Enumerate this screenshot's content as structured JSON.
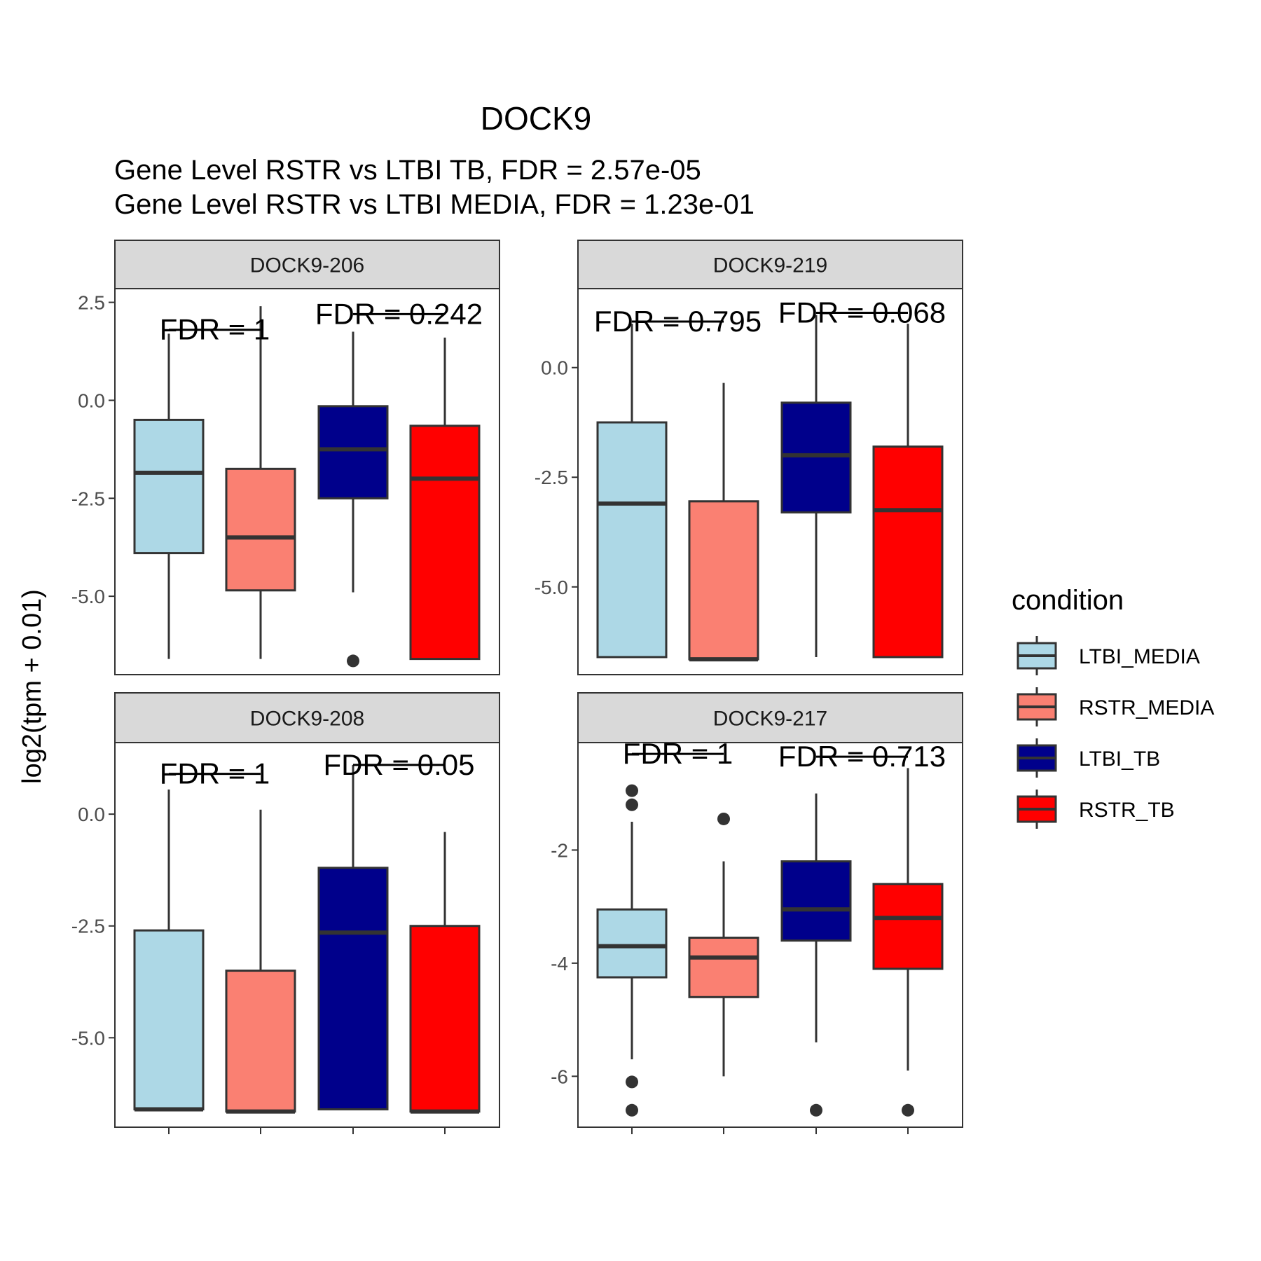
{
  "chart_data": {
    "type": "box",
    "title": "DOCK9",
    "subtitle_lines": [
      "Gene Level RSTR vs LTBI TB, FDR =  2.57e-05",
      "Gene Level RSTR vs LTBI MEDIA, FDR =  1.23e-01"
    ],
    "ylabel": "log2(tpm + 0.01)",
    "grid": false,
    "legend_position": "right",
    "legend": {
      "title": "condition",
      "items": [
        {
          "label": "LTBI_MEDIA",
          "color": "#ADD8E6"
        },
        {
          "label": "RSTR_MEDIA",
          "color": "#FA8072"
        },
        {
          "label": "LTBI_TB",
          "color": "#00008B"
        },
        {
          "label": "RSTR_TB",
          "color": "#FF0000"
        }
      ]
    },
    "categories": [
      "LTBI_MEDIA",
      "RSTR_MEDIA",
      "LTBI_TB",
      "RSTR_TB"
    ],
    "panels": [
      {
        "strip": "DOCK9-206",
        "ylim": [
          -7.0,
          2.85
        ],
        "yticks": [
          2.5,
          0.0,
          -2.5,
          -5.0
        ],
        "ytick_labels": [
          "2.5",
          "0.0",
          "-2.5",
          "-5.0"
        ],
        "boxes": [
          {
            "min": -6.6,
            "q1": -3.9,
            "median": -1.85,
            "q3": -0.5,
            "max": 1.7,
            "outliers": []
          },
          {
            "min": -6.6,
            "q1": -4.85,
            "median": -3.5,
            "q3": -1.75,
            "max": 2.4,
            "outliers": []
          },
          {
            "min": -4.9,
            "q1": -2.5,
            "median": -1.25,
            "q3": -0.15,
            "max": 1.75,
            "outliers": [
              -6.65
            ]
          },
          {
            "min": -6.6,
            "q1": -6.6,
            "median": -2.0,
            "q3": -0.65,
            "max": 1.6,
            "outliers": []
          }
        ],
        "fdr": [
          {
            "text": "FDR =  1",
            "y": 1.8
          },
          {
            "text": "FDR =  0.242",
            "y": 2.2
          }
        ]
      },
      {
        "strip": "DOCK9-219",
        "ylim": [
          -7.0,
          1.8
        ],
        "yticks": [
          0.0,
          -2.5,
          -5.0
        ],
        "ytick_labels": [
          "0.0",
          "-2.5",
          "-5.0"
        ],
        "boxes": [
          {
            "min": -6.6,
            "q1": -6.6,
            "median": -3.1,
            "q3": -1.25,
            "max": 1.0,
            "outliers": []
          },
          {
            "min": -6.65,
            "q1": -6.65,
            "median": -6.65,
            "q3": -3.05,
            "max": -0.35,
            "outliers": []
          },
          {
            "min": -6.6,
            "q1": -3.3,
            "median": -2.0,
            "q3": -0.8,
            "max": 1.2,
            "outliers": []
          },
          {
            "min": -6.6,
            "q1": -6.6,
            "median": -3.25,
            "q3": -1.8,
            "max": 1.0,
            "outliers": []
          }
        ],
        "fdr": [
          {
            "text": "FDR =  0.795",
            "y": 1.05
          },
          {
            "text": "FDR =  0.068",
            "y": 1.25
          }
        ]
      },
      {
        "strip": "DOCK9-208",
        "ylim": [
          -7.0,
          1.6
        ],
        "yticks": [
          0.0,
          -2.5,
          -5.0
        ],
        "ytick_labels": [
          "0.0",
          "-2.5",
          "-5.0"
        ],
        "boxes": [
          {
            "min": -6.6,
            "q1": -6.6,
            "median": -6.6,
            "q3": -2.6,
            "max": 0.55,
            "outliers": []
          },
          {
            "min": -6.65,
            "q1": -6.65,
            "median": -6.65,
            "q3": -3.5,
            "max": 0.1,
            "outliers": []
          },
          {
            "min": -6.6,
            "q1": -6.6,
            "median": -2.65,
            "q3": -1.2,
            "max": 1.1,
            "outliers": []
          },
          {
            "min": -6.65,
            "q1": -6.65,
            "median": -6.65,
            "q3": -2.5,
            "max": -0.4,
            "outliers": []
          }
        ],
        "fdr": [
          {
            "text": "FDR =  1",
            "y": 0.9
          },
          {
            "text": "FDR =  0.05",
            "y": 1.1
          }
        ]
      },
      {
        "strip": "DOCK9-217",
        "ylim": [
          -6.9,
          -0.1
        ],
        "yticks": [
          -2,
          -4,
          -6
        ],
        "ytick_labels": [
          "-2",
          "-4",
          "-6"
        ],
        "boxes": [
          {
            "min": -5.7,
            "q1": -4.25,
            "median": -3.7,
            "q3": -3.05,
            "max": -1.5,
            "outliers": [
              -0.95,
              -1.2,
              -6.1,
              -6.6
            ]
          },
          {
            "min": -6.0,
            "q1": -4.6,
            "median": -3.9,
            "q3": -3.55,
            "max": -2.2,
            "outliers": [
              -1.45
            ]
          },
          {
            "min": -5.4,
            "q1": -3.6,
            "median": -3.05,
            "q3": -2.2,
            "max": -1.0,
            "outliers": [
              -6.6
            ]
          },
          {
            "min": -5.9,
            "q1": -4.1,
            "median": -3.2,
            "q3": -2.6,
            "max": -0.55,
            "outliers": [
              -6.6
            ]
          }
        ],
        "fdr": [
          {
            "text": "FDR =  1",
            "y": -0.3
          },
          {
            "text": "FDR =  0.713",
            "y": -0.35
          }
        ]
      }
    ]
  }
}
